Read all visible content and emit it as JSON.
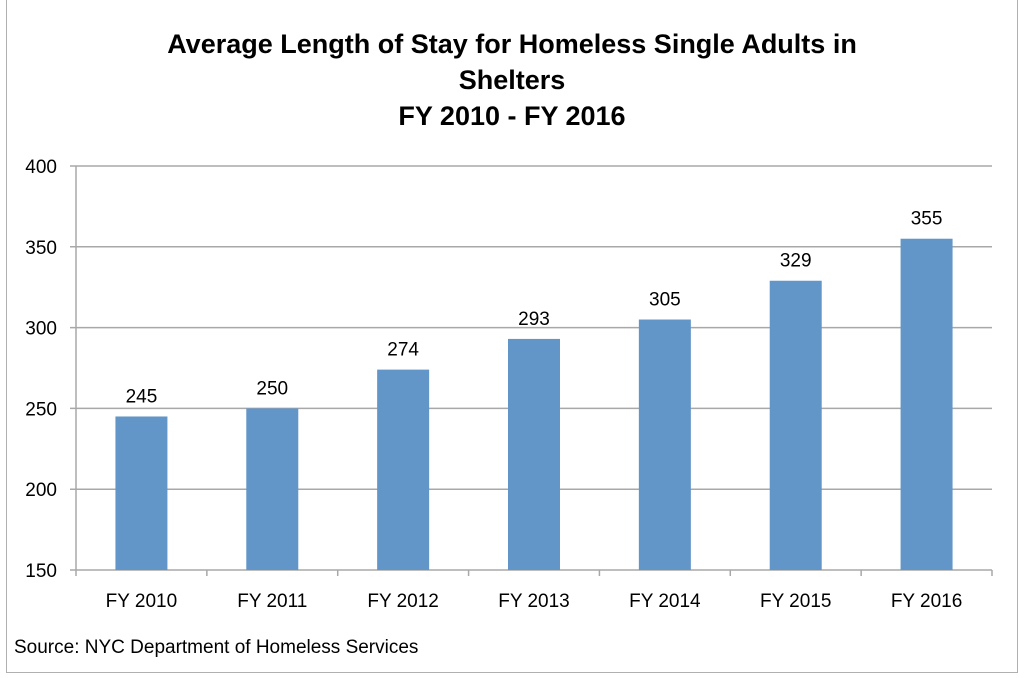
{
  "chart_data": {
    "type": "bar",
    "title_lines": [
      "Average Length of Stay for Homeless Single Adults in",
      "Shelters",
      "FY 2010 - FY 2016"
    ],
    "categories": [
      "FY 2010",
      "FY 2011",
      "FY 2012",
      "FY 2013",
      "FY 2014",
      "FY 2015",
      "FY 2016"
    ],
    "values": [
      245,
      250,
      274,
      293,
      305,
      329,
      355
    ],
    "data_labels": [
      "245",
      "250",
      "274",
      "293",
      "305",
      "329",
      "355"
    ],
    "xlabel": "",
    "ylabel": "",
    "ylim": [
      150,
      400
    ],
    "yticks": [
      150,
      200,
      250,
      300,
      350,
      400
    ],
    "ytick_labels": [
      "150",
      "200",
      "250",
      "300",
      "350",
      "400"
    ],
    "grid": true,
    "legend": "none",
    "bar_color": "#6396c8",
    "source": "Source: NYC Department of Homeless Services"
  }
}
